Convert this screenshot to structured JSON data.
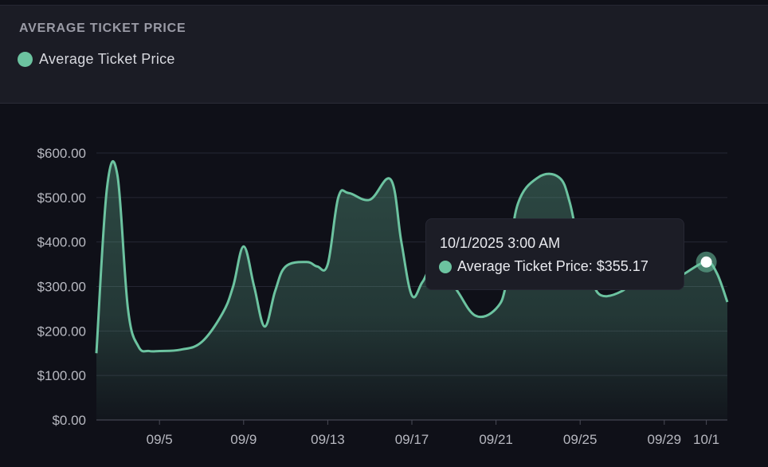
{
  "header": {
    "title": "AVERAGE TICKET PRICE",
    "legend_label": "Average Ticket Price"
  },
  "colors": {
    "background": "#0f1018",
    "header_bg": "#1b1c25",
    "series": "#6cc3a0",
    "grid": "#2a2b36",
    "tick_text": "#b7b8c0"
  },
  "tooltip": {
    "date": "10/1/2025 3:00 AM",
    "series_name": "Average Ticket Price",
    "value": "$355.17"
  },
  "chart_data": {
    "type": "area",
    "title": "AVERAGE TICKET PRICE",
    "xlabel": "",
    "ylabel": "",
    "ylim": [
      0,
      600
    ],
    "y_ticks": [
      "$0.00",
      "$100.00",
      "$200.00",
      "$300.00",
      "$400.00",
      "$500.00",
      "$600.00"
    ],
    "x_ticks": [
      "09/5",
      "09/9",
      "09/13",
      "09/17",
      "09/21",
      "09/25",
      "09/29",
      "10/1"
    ],
    "grid": "horizontal",
    "legend": "top-left",
    "series": [
      {
        "name": "Average Ticket Price",
        "x": [
          "2025-09-02",
          "2025-09-02 12:00",
          "2025-09-03",
          "2025-09-03 12:00",
          "2025-09-04",
          "2025-09-04 12:00",
          "2025-09-05",
          "2025-09-06",
          "2025-09-07",
          "2025-09-08",
          "2025-09-08 12:00",
          "2025-09-09",
          "2025-09-09 12:00",
          "2025-09-10",
          "2025-09-10 12:00",
          "2025-09-11",
          "2025-09-12",
          "2025-09-12 12:00",
          "2025-09-13",
          "2025-09-13 12:00",
          "2025-09-14",
          "2025-09-15",
          "2025-09-16",
          "2025-09-16 12:00",
          "2025-09-17",
          "2025-09-17 12:00",
          "2025-09-18",
          "2025-09-19",
          "2025-09-20",
          "2025-09-21",
          "2025-09-21 12:00",
          "2025-09-22",
          "2025-09-23",
          "2025-09-24",
          "2025-09-24 12:00",
          "2025-09-25",
          "2025-09-25 12:00",
          "2025-09-26",
          "2025-09-27",
          "2025-09-28",
          "2025-09-29",
          "2025-09-29 12:00",
          "2025-09-30",
          "2025-10-01",
          "2025-10-01 12:00",
          "2025-10-02"
        ],
        "values": [
          150,
          520,
          550,
          250,
          165,
          155,
          155,
          158,
          175,
          240,
          300,
          390,
          300,
          210,
          290,
          345,
          355,
          345,
          350,
          500,
          510,
          495,
          540,
          400,
          280,
          310,
          340,
          300,
          235,
          250,
          310,
          480,
          545,
          545,
          490,
          380,
          320,
          280,
          290,
          330,
          305,
          315,
          330,
          355,
          330,
          265
        ]
      }
    ]
  }
}
